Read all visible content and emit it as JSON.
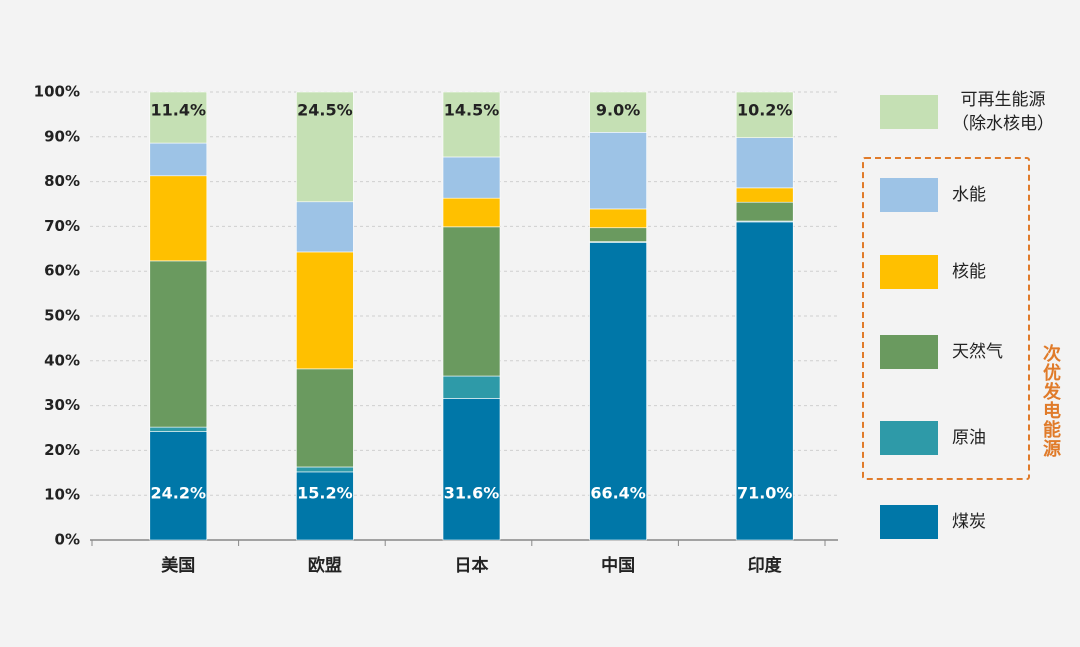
{
  "chart_data": {
    "type": "stacked_bar",
    "categories": [
      "美国",
      "欧盟",
      "日本",
      "中国",
      "印度"
    ],
    "series": [
      {
        "name": "煤炭",
        "color": "#0077a8",
        "values": [
          24.2,
          15.2,
          31.6,
          66.4,
          71.0
        ],
        "value_labels": [
          "24.2%",
          "15.2%",
          "31.6%",
          "66.4%",
          "71.0%"
        ]
      },
      {
        "name": "原油",
        "color": "#2e9aa8",
        "values": [
          1.0,
          1.1,
          5.0,
          0.2,
          0.2
        ]
      },
      {
        "name": "天然气",
        "color": "#6a9a5f",
        "values": [
          37.1,
          21.9,
          33.3,
          3.1,
          4.2
        ]
      },
      {
        "name": "核能",
        "color": "#ffc000",
        "values": [
          19.0,
          26.1,
          6.4,
          4.2,
          3.2
        ]
      },
      {
        "name": "水能",
        "color": "#9dc3e6",
        "values": [
          7.3,
          11.2,
          9.2,
          17.1,
          11.2
        ]
      },
      {
        "name": "可再生能源\n（除水核电）",
        "color": "#c5e0b4",
        "values": [
          11.4,
          24.5,
          14.5,
          9.0,
          10.2
        ],
        "value_labels": [
          "11.4%",
          "24.5%",
          "14.5%",
          "9.0%",
          "10.2%"
        ]
      }
    ],
    "ylim": [
      0,
      100
    ],
    "yticks": [
      {
        "value": 0,
        "label": "0%"
      },
      {
        "value": 10,
        "label": "10%"
      },
      {
        "value": 20,
        "label": "20%"
      },
      {
        "value": 30,
        "label": "30%"
      },
      {
        "value": 40,
        "label": "40%"
      },
      {
        "value": 50,
        "label": "50%"
      },
      {
        "value": 60,
        "label": "60%"
      },
      {
        "value": 70,
        "label": "70%"
      },
      {
        "value": 80,
        "label": "80%"
      },
      {
        "value": 90,
        "label": "90%"
      },
      {
        "value": 100,
        "label": "100%"
      }
    ],
    "grid": true,
    "annotation": "次优发电能源"
  }
}
